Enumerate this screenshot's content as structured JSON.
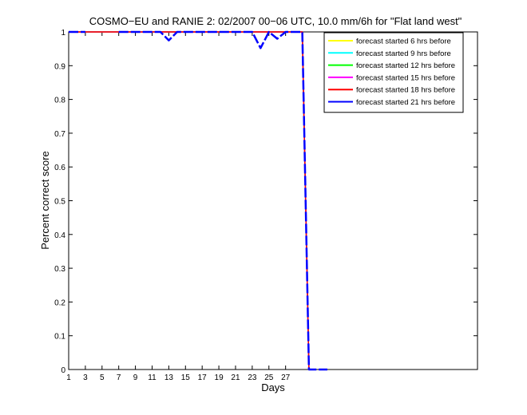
{
  "chart_data": {
    "type": "line",
    "title": "COSMO−EU and RANIE 2: 02/2007 00−06 UTC, 10.0 mm/6h for \"Flat land west\"",
    "xlabel": "Days",
    "ylabel": "Percent correct score",
    "xlim": [
      1,
      50
    ],
    "ylim": [
      0,
      1
    ],
    "x_ticks": [
      "1",
      "3",
      "5",
      "7",
      "9",
      "11",
      "13",
      "15",
      "17",
      "19",
      "21",
      "23",
      "25",
      "27"
    ],
    "y_ticks": [
      "0",
      "0.1",
      "0.2",
      "0.3",
      "0.4",
      "0.5",
      "0.6",
      "0.7",
      "0.8",
      "0.9",
      "1"
    ],
    "legend_position": "top-right",
    "grid": false,
    "series": [
      {
        "name": "forecast started 6 hrs before",
        "color": "#ffff00",
        "width": 1.5,
        "dashed": false,
        "x": [
          1,
          28,
          29,
          29.8,
          30
        ],
        "y": [
          1,
          1,
          1,
          0,
          0
        ]
      },
      {
        "name": "forecast started 9 hrs before",
        "color": "#00ffff",
        "width": 1.5,
        "dashed": false,
        "x": [
          1,
          28,
          29,
          29.8,
          30
        ],
        "y": [
          1,
          1,
          1,
          0,
          0
        ]
      },
      {
        "name": "forecast started 12 hrs before",
        "color": "#00ff00",
        "width": 1.5,
        "dashed": false,
        "x": [
          1,
          28,
          29,
          29.8,
          30
        ],
        "y": [
          1,
          1,
          1,
          0,
          0
        ]
      },
      {
        "name": "forecast started 15 hrs before",
        "color": "#ff00ff",
        "width": 1.5,
        "dashed": false,
        "x": [
          1,
          28,
          29,
          29.8,
          30
        ],
        "y": [
          1,
          1,
          1,
          0,
          0
        ]
      },
      {
        "name": "forecast started 18 hrs before",
        "color": "#ff0000",
        "width": 1.5,
        "dashed": false,
        "x": [
          1,
          28,
          29,
          29.8,
          30
        ],
        "y": [
          1,
          1,
          1,
          0,
          0
        ]
      },
      {
        "name": "forecast started 21 hrs before",
        "color": "#0000ff",
        "width": 2.5,
        "dashed": true,
        "x": [
          1,
          3,
          4,
          6,
          7,
          12,
          13,
          14,
          23,
          24,
          25,
          26,
          27,
          28,
          29,
          29.8,
          30,
          32
        ],
        "y": [
          1,
          1,
          null,
          null,
          1,
          1,
          0.975,
          1,
          1,
          0.952,
          1,
          0.98,
          1,
          1,
          1,
          0,
          0,
          0
        ]
      }
    ]
  }
}
